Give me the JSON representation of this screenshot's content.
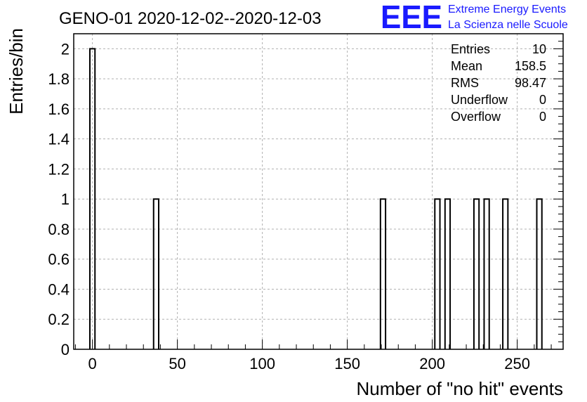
{
  "chart_data": {
    "type": "bar",
    "title": "GENO-01 2020-12-02--2020-12-03",
    "xlabel": "Number of \"no hit\" events",
    "ylabel": "Entries/bin",
    "xlim": [
      -11,
      277
    ],
    "ylim": [
      0,
      2.1
    ],
    "bin_width": 3,
    "x_ticks": [
      0,
      50,
      100,
      150,
      200,
      250
    ],
    "x_tick_labels": [
      "0",
      "50",
      "100",
      "150",
      "200",
      "250"
    ],
    "y_ticks": [
      0,
      0.2,
      0.4,
      0.6,
      0.8,
      1,
      1.2,
      1.4,
      1.6,
      1.8,
      2
    ],
    "y_tick_labels": [
      "0",
      "0.2",
      "0.4",
      "0.6",
      "0.8",
      "1",
      "1.2",
      "1.4",
      "1.6",
      "1.8",
      "2"
    ],
    "grid": true,
    "bins": [
      {
        "x_low": -1.5,
        "x_high": 1.5,
        "value": 2
      },
      {
        "x_low": 36,
        "x_high": 39,
        "value": 1
      },
      {
        "x_low": 169.5,
        "x_high": 172.5,
        "value": 1
      },
      {
        "x_low": 201.5,
        "x_high": 204.5,
        "value": 1
      },
      {
        "x_low": 207.5,
        "x_high": 210.5,
        "value": 1
      },
      {
        "x_low": 224.5,
        "x_high": 227.5,
        "value": 1
      },
      {
        "x_low": 230.5,
        "x_high": 233.5,
        "value": 1
      },
      {
        "x_low": 241.5,
        "x_high": 244.5,
        "value": 1
      },
      {
        "x_low": 261.5,
        "x_high": 264.5,
        "value": 1
      }
    ],
    "stats": [
      {
        "label": "Entries",
        "value": "10"
      },
      {
        "label": "Mean",
        "value": "158.5"
      },
      {
        "label": "RMS",
        "value": "98.47"
      },
      {
        "label": "Underflow",
        "value": "0"
      },
      {
        "label": "Overflow",
        "value": "0"
      }
    ],
    "stats_placement": "top-right"
  },
  "logo": {
    "mark": "EEE",
    "line1": "Extreme Energy Events",
    "line2": "La Scienza nelle Scuole",
    "color": "#1a1aff"
  }
}
